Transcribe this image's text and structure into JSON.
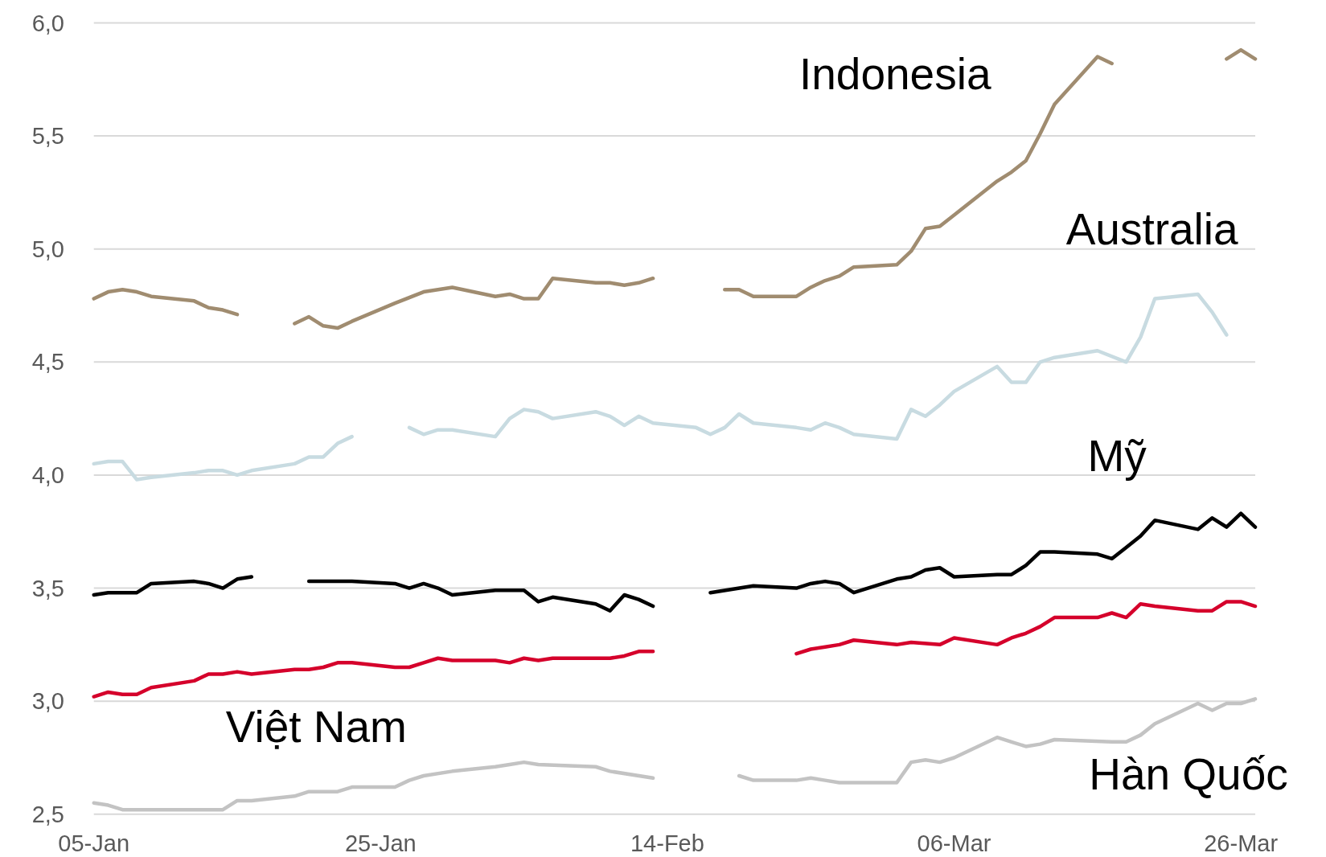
{
  "chart_data": {
    "type": "line",
    "grid": "y",
    "xlim": [
      "--01-05",
      "--03-27"
    ],
    "xticks": [
      {
        "value": "--01-05",
        "label": "05-Jan"
      },
      {
        "value": "--01-25",
        "label": "25-Jan"
      },
      {
        "value": "--02-14",
        "label": "14-Feb"
      },
      {
        "value": "--03-06",
        "label": "06-Mar"
      },
      {
        "value": "--03-26",
        "label": "26-Mar"
      }
    ],
    "ylim": [
      2.5,
      6
    ],
    "yticks": [
      {
        "value": 2.5,
        "label": "2,5"
      },
      {
        "value": 3,
        "label": "3,0"
      },
      {
        "value": 3.5,
        "label": "3,5"
      },
      {
        "value": 4,
        "label": "4,0"
      },
      {
        "value": 4.5,
        "label": "4,5"
      },
      {
        "value": 5,
        "label": "5,0"
      },
      {
        "value": 5.5,
        "label": "5,5"
      },
      {
        "value": 6,
        "label": "6,0"
      }
    ],
    "series": [
      {
        "name": "Indonesia",
        "color": "#a08c70",
        "x": [
          "--01-05",
          "--01-06",
          "--01-07",
          "--01-08",
          "--01-09",
          "--01-12",
          "--01-13",
          "--01-14",
          "--01-15",
          "--01-16",
          "--01-19",
          "--01-20",
          "--01-21",
          "--01-22",
          "--01-23",
          "--01-26",
          "--01-28",
          "--01-30",
          "--02-02",
          "--02-03",
          "--02-04",
          "--02-05",
          "--02-06",
          "--02-09",
          "--02-10",
          "--02-11",
          "--02-12",
          "--02-13",
          "--02-16",
          "--02-18",
          "--02-19",
          "--02-20",
          "--02-23",
          "--02-24",
          "--02-25",
          "--02-26",
          "--02-27",
          "--03-02",
          "--03-03",
          "--03-04",
          "--03-05",
          "--03-06",
          "--03-09",
          "--03-10",
          "--03-11",
          "--03-12",
          "--03-13",
          "--03-16",
          "--03-17",
          "--03-18",
          "--03-25",
          "--03-26",
          "--03-27"
        ],
        "values": [
          4.78,
          4.81,
          4.82,
          4.81,
          4.79,
          4.77,
          4.74,
          4.73,
          4.71,
          null,
          4.67,
          4.7,
          4.66,
          4.65,
          4.68,
          4.76,
          4.81,
          4.83,
          4.79,
          4.8,
          4.78,
          4.78,
          4.87,
          4.85,
          4.85,
          4.84,
          4.85,
          4.87,
          null,
          4.82,
          4.82,
          4.79,
          4.79,
          4.83,
          4.86,
          4.88,
          4.92,
          4.93,
          4.99,
          5.09,
          5.1,
          5.15,
          5.3,
          5.34,
          5.39,
          5.51,
          5.64,
          5.85,
          5.82,
          null,
          5.84,
          5.88,
          5.84
        ]
      },
      {
        "name": "Australia",
        "color": "#c8dbe1",
        "x": [
          "--01-05",
          "--01-06",
          "--01-07",
          "--01-08",
          "--01-09",
          "--01-12",
          "--01-13",
          "--01-14",
          "--01-15",
          "--01-16",
          "--01-19",
          "--01-20",
          "--01-21",
          "--01-22",
          "--01-23",
          "--01-26",
          "--01-27",
          "--01-28",
          "--01-29",
          "--01-30",
          "--02-02",
          "--02-03",
          "--02-04",
          "--02-05",
          "--02-06",
          "--02-09",
          "--02-10",
          "--02-11",
          "--02-12",
          "--02-13",
          "--02-16",
          "--02-17",
          "--02-18",
          "--02-19",
          "--02-20",
          "--02-23",
          "--02-24",
          "--02-25",
          "--02-26",
          "--02-27",
          "--03-02",
          "--03-03",
          "--03-04",
          "--03-05",
          "--03-06",
          "--03-09",
          "--03-10",
          "--03-11",
          "--03-12",
          "--03-13",
          "--03-16",
          "--03-18",
          "--03-19",
          "--03-20",
          "--03-23",
          "--03-24",
          "--03-25"
        ],
        "values": [
          4.05,
          4.06,
          4.06,
          3.98,
          3.99,
          4.01,
          4.02,
          4.02,
          4.0,
          4.02,
          4.05,
          4.08,
          4.08,
          4.14,
          4.17,
          null,
          4.21,
          4.18,
          4.2,
          4.2,
          4.17,
          4.25,
          4.29,
          4.28,
          4.25,
          4.28,
          4.26,
          4.22,
          4.26,
          4.23,
          4.21,
          4.18,
          4.21,
          4.27,
          4.23,
          4.21,
          4.2,
          4.23,
          4.21,
          4.18,
          4.16,
          4.29,
          4.26,
          4.31,
          4.37,
          4.48,
          4.41,
          4.41,
          4.5,
          4.52,
          4.55,
          4.5,
          4.61,
          4.78,
          4.8,
          4.72,
          4.62
        ]
      },
      {
        "name": "Mỹ",
        "color": "#000000",
        "x": [
          "--01-05",
          "--01-06",
          "--01-08",
          "--01-09",
          "--01-12",
          "--01-13",
          "--01-14",
          "--01-15",
          "--01-16",
          "--01-19",
          "--01-20",
          "--01-23",
          "--01-26",
          "--01-27",
          "--01-28",
          "--01-29",
          "--01-30",
          "--02-02",
          "--02-03",
          "--02-04",
          "--02-05",
          "--02-06",
          "--02-09",
          "--02-10",
          "--02-11",
          "--02-12",
          "--02-13",
          "--02-16",
          "--02-17",
          "--02-20",
          "--02-23",
          "--02-24",
          "--02-25",
          "--02-26",
          "--02-27",
          "--03-02",
          "--03-03",
          "--03-04",
          "--03-05",
          "--03-06",
          "--03-09",
          "--03-10",
          "--03-11",
          "--03-12",
          "--03-13",
          "--03-16",
          "--03-17",
          "--03-18",
          "--03-19",
          "--03-20",
          "--03-23",
          "--03-24",
          "--03-25",
          "--03-26",
          "--03-27"
        ],
        "values": [
          3.47,
          3.48,
          3.48,
          3.52,
          3.53,
          3.52,
          3.5,
          3.54,
          3.55,
          null,
          3.53,
          3.53,
          3.52,
          3.5,
          3.52,
          3.5,
          3.47,
          3.49,
          3.49,
          3.49,
          3.44,
          3.46,
          3.43,
          3.4,
          3.47,
          3.45,
          3.42,
          null,
          3.48,
          3.51,
          3.5,
          3.52,
          3.53,
          3.52,
          3.48,
          3.54,
          3.55,
          3.58,
          3.59,
          3.55,
          3.56,
          3.56,
          3.6,
          3.66,
          3.66,
          3.65,
          3.63,
          3.68,
          3.73,
          3.8,
          3.76,
          3.81,
          3.77,
          3.83,
          3.77
        ]
      },
      {
        "name": "Việt Nam",
        "color": "#d5002b",
        "x": [
          "--01-05",
          "--01-06",
          "--01-07",
          "--01-08",
          "--01-09",
          "--01-12",
          "--01-13",
          "--01-14",
          "--01-15",
          "--01-16",
          "--01-19",
          "--01-20",
          "--01-21",
          "--01-22",
          "--01-23",
          "--01-26",
          "--01-27",
          "--01-28",
          "--01-29",
          "--01-30",
          "--02-02",
          "--02-03",
          "--02-04",
          "--02-05",
          "--02-06",
          "--02-10",
          "--02-11",
          "--02-12",
          "--02-13",
          "--02-16",
          "--02-23",
          "--02-24",
          "--02-25",
          "--02-26",
          "--02-27",
          "--03-02",
          "--03-03",
          "--03-05",
          "--03-06",
          "--03-09",
          "--03-10",
          "--03-11",
          "--03-12",
          "--03-13",
          "--03-16",
          "--03-17",
          "--03-18",
          "--03-19",
          "--03-20",
          "--03-23",
          "--03-24",
          "--03-25",
          "--03-26",
          "--03-27"
        ],
        "values": [
          3.02,
          3.04,
          3.03,
          3.03,
          3.06,
          3.09,
          3.12,
          3.12,
          3.13,
          3.12,
          3.14,
          3.14,
          3.15,
          3.17,
          3.17,
          3.15,
          3.15,
          3.17,
          3.19,
          3.18,
          3.18,
          3.17,
          3.19,
          3.18,
          3.19,
          3.19,
          3.2,
          3.22,
          3.22,
          null,
          3.21,
          3.23,
          3.24,
          3.25,
          3.27,
          3.25,
          3.26,
          3.25,
          3.28,
          3.25,
          3.28,
          3.3,
          3.33,
          3.37,
          3.37,
          3.39,
          3.37,
          3.43,
          3.42,
          3.4,
          3.4,
          3.44,
          3.44,
          3.42
        ]
      },
      {
        "name": "Hàn Quốc",
        "color": "#c3c3c3",
        "x": [
          "--01-05",
          "--01-06",
          "--01-07",
          "--01-08",
          "--01-09",
          "--01-14",
          "--01-15",
          "--01-16",
          "--01-19",
          "--01-20",
          "--01-22",
          "--01-23",
          "--01-26",
          "--01-27",
          "--01-28",
          "--01-30",
          "--02-02",
          "--02-03",
          "--02-04",
          "--02-05",
          "--02-09",
          "--02-10",
          "--02-13",
          "--02-16",
          "--02-19",
          "--02-20",
          "--02-23",
          "--02-24",
          "--02-25",
          "--02-26",
          "--03-02",
          "--03-03",
          "--03-04",
          "--03-05",
          "--03-06",
          "--03-09",
          "--03-10",
          "--03-11",
          "--03-12",
          "--03-13",
          "--03-17",
          "--03-18",
          "--03-19",
          "--03-20",
          "--03-23",
          "--03-24",
          "--03-25",
          "--03-26",
          "--03-27"
        ],
        "values": [
          2.55,
          2.54,
          2.52,
          2.52,
          2.52,
          2.52,
          2.56,
          2.56,
          2.58,
          2.6,
          2.6,
          2.62,
          2.62,
          2.65,
          2.67,
          2.69,
          2.71,
          2.72,
          2.73,
          2.72,
          2.71,
          2.69,
          2.66,
          null,
          2.67,
          2.65,
          2.65,
          2.66,
          2.65,
          2.64,
          2.64,
          2.73,
          2.74,
          2.73,
          2.75,
          2.84,
          2.82,
          2.8,
          2.81,
          2.83,
          2.82,
          2.82,
          2.85,
          2.9,
          2.99,
          2.96,
          2.99,
          2.99,
          3.01
        ]
      }
    ]
  }
}
